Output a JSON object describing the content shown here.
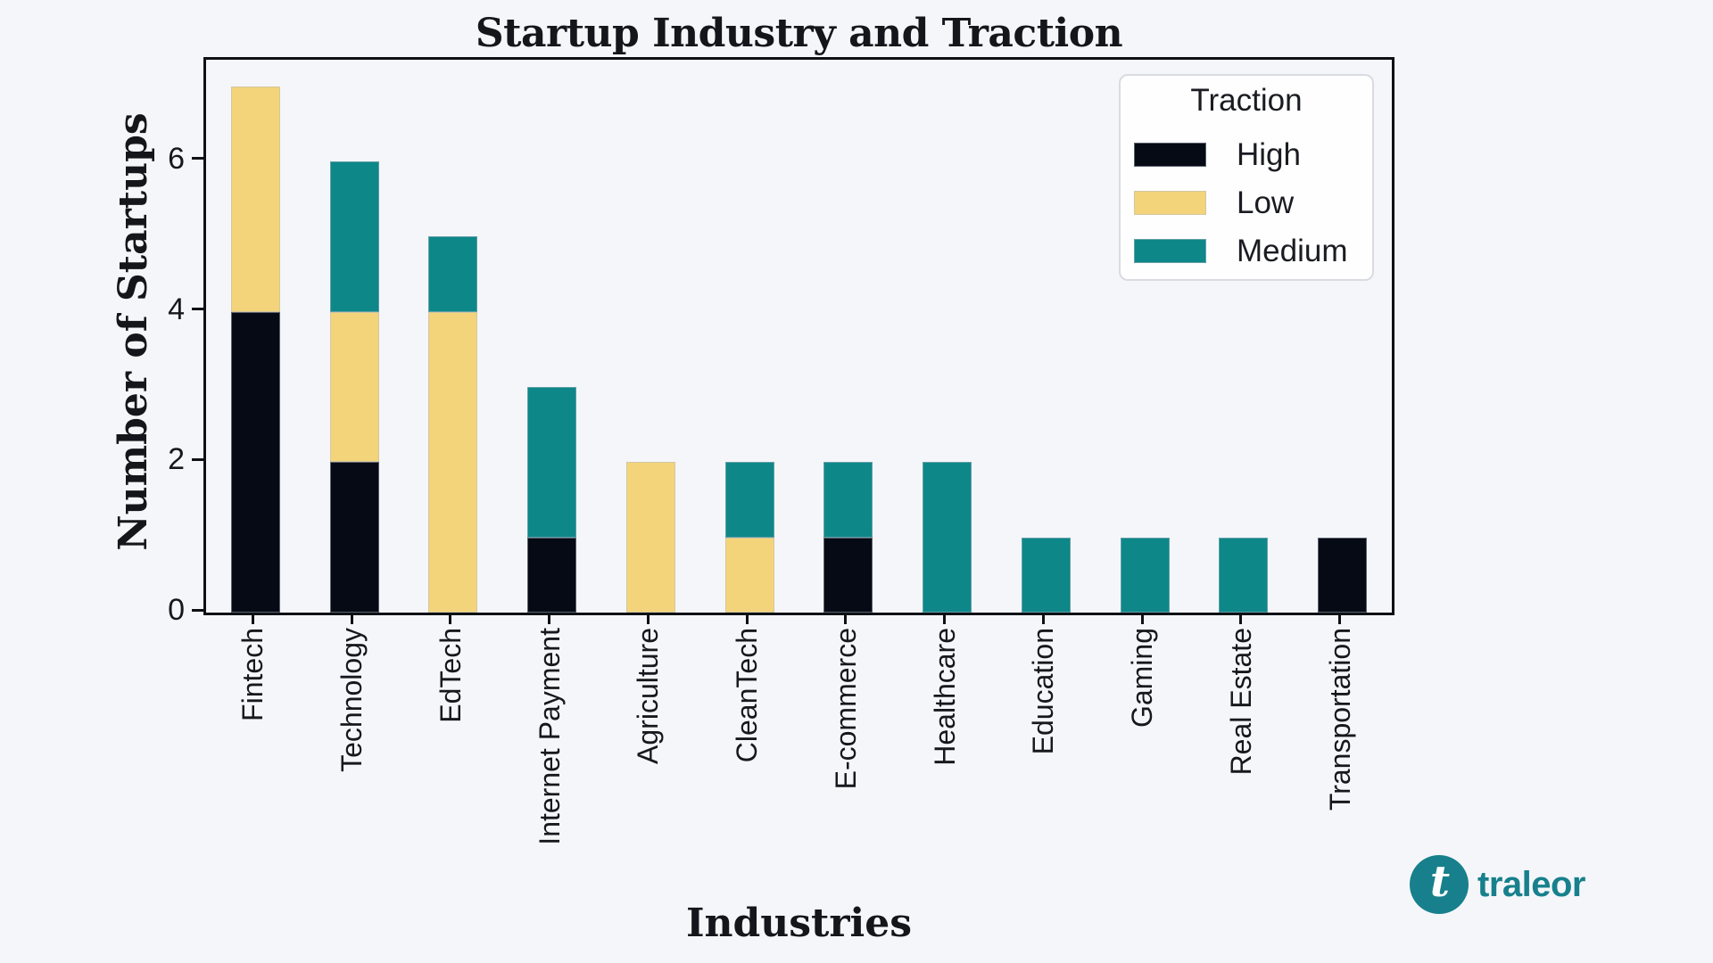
{
  "page": {
    "background_color": "#f5f6fa",
    "text_color": "#16181d",
    "spine_color": "#0d1015"
  },
  "chart_data": {
    "type": "bar",
    "stacked": true,
    "title": "Startup Industry and Traction",
    "xlabel": "Industries",
    "ylabel": "Number of Startups",
    "categories": [
      "Fintech",
      "Technology",
      "EdTech",
      "Internet Payment",
      "Agriculture",
      "CleanTech",
      "E-commerce",
      "Healthcare",
      "Education",
      "Gaming",
      "Real Estate",
      "Transportation"
    ],
    "series": [
      {
        "name": "High",
        "color": "#050a15",
        "values": [
          4,
          2,
          0,
          1,
          0,
          0,
          1,
          0,
          0,
          0,
          0,
          1
        ]
      },
      {
        "name": "Low",
        "color": "#f4d47b",
        "values": [
          3,
          2,
          4,
          0,
          2,
          1,
          0,
          0,
          0,
          0,
          0,
          0
        ]
      },
      {
        "name": "Medium",
        "color": "#0e8789",
        "values": [
          0,
          2,
          1,
          2,
          0,
          1,
          1,
          2,
          1,
          1,
          1,
          0
        ]
      }
    ],
    "totals": [
      7,
      6,
      5,
      3,
      2,
      2,
      2,
      2,
      1,
      1,
      1,
      1
    ],
    "ylim": [
      0,
      7.35
    ],
    "yticks": [
      0,
      2,
      4,
      6
    ],
    "grid": false,
    "legend": {
      "title": "Traction",
      "position": "upper right",
      "entries": [
        "High",
        "Low",
        "Medium"
      ]
    }
  },
  "branding": {
    "logo_letter": "t",
    "logo_text": "traleor",
    "logo_color": "#17808c"
  }
}
